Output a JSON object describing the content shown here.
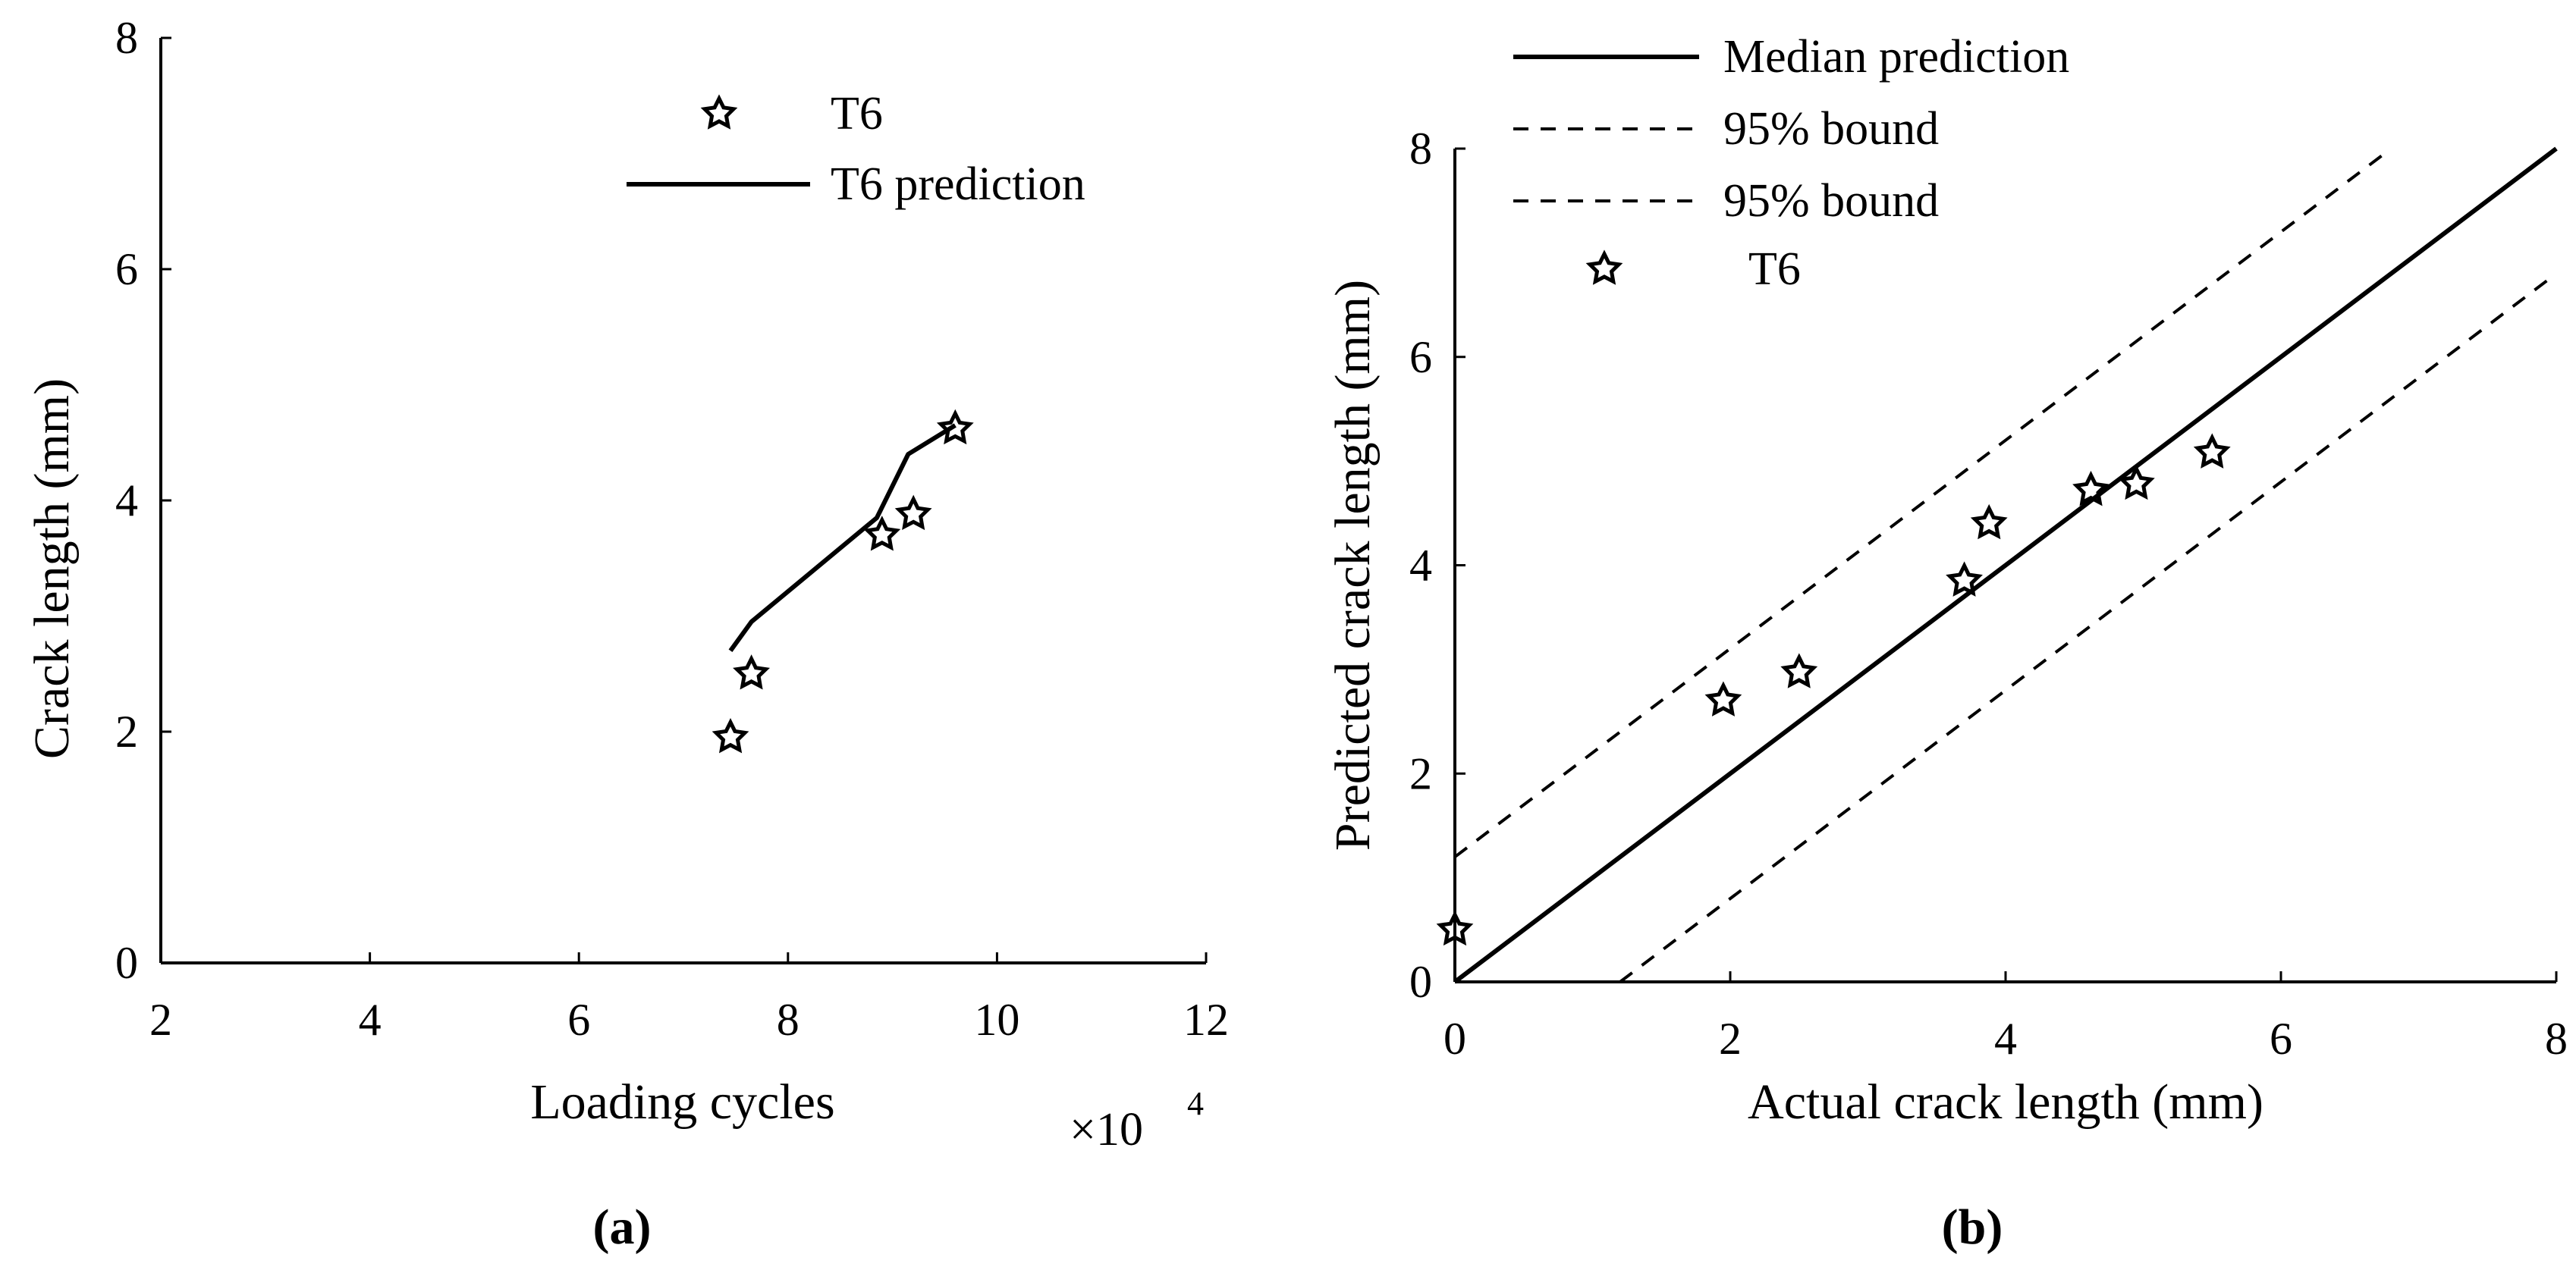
{
  "chart_data": [
    {
      "panel": "a",
      "type": "line",
      "caption_letter": "a",
      "xlabel": "Loading cycles",
      "ylabel": "Crack length (mm)",
      "x_multiplier": "×10",
      "x_multiplier_exp": "4",
      "xlim": [
        2,
        12
      ],
      "ylim": [
        0,
        8
      ],
      "xticks": [
        2,
        4,
        6,
        8,
        10,
        12
      ],
      "yticks": [
        0,
        2,
        4,
        6,
        8
      ],
      "legend_position": "top-right",
      "series": [
        {
          "name": "T6",
          "style": "star-marker",
          "x": [
            7.45,
            7.65,
            8.9,
            9.2,
            9.6
          ],
          "y": [
            1.95,
            2.5,
            3.7,
            3.88,
            4.62
          ]
        },
        {
          "name": "T6 prediction",
          "style": "solid-line",
          "x": [
            7.45,
            7.65,
            8.85,
            9.15,
            9.6
          ],
          "y": [
            2.7,
            2.95,
            3.85,
            4.4,
            4.65
          ]
        }
      ]
    },
    {
      "panel": "b",
      "type": "scatter",
      "caption_letter": "b",
      "xlabel": "Actual crack length (mm)",
      "ylabel": "Predicted crack length (mm)",
      "xlim": [
        0,
        8
      ],
      "ylim": [
        0,
        8
      ],
      "xticks": [
        0,
        2,
        4,
        6,
        8
      ],
      "yticks": [
        0,
        2,
        4,
        6,
        8
      ],
      "legend_position": "top-left (outside axes)",
      "series": [
        {
          "name": "Median prediction",
          "style": "solid-line",
          "x": [
            0,
            8
          ],
          "y": [
            0,
            8
          ]
        },
        {
          "name": "95% bound",
          "style": "dashed-line",
          "x": [
            0,
            6.8
          ],
          "y": [
            1.2,
            8.0
          ]
        },
        {
          "name": "95% bound",
          "style": "dashed-line",
          "x": [
            1.2,
            8.0
          ],
          "y": [
            0,
            6.8
          ]
        },
        {
          "name": "T6",
          "style": "star-marker",
          "x": [
            0.0,
            1.95,
            2.5,
            3.7,
            3.88,
            4.62,
            4.95,
            5.5
          ],
          "y": [
            0.5,
            2.7,
            2.97,
            3.85,
            4.4,
            4.72,
            4.78,
            5.08
          ]
        }
      ]
    }
  ]
}
